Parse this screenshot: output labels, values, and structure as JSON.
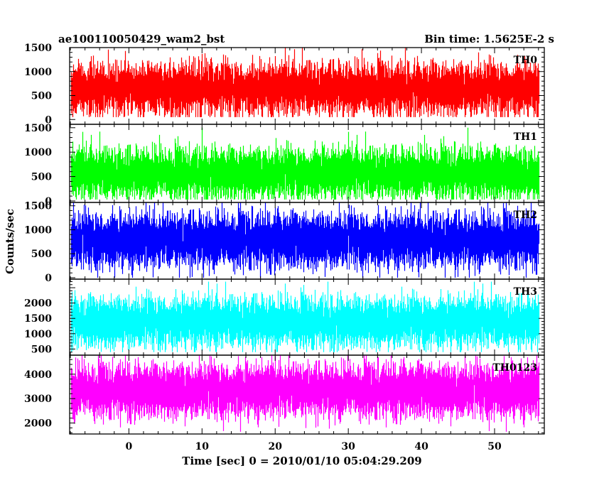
{
  "header": {
    "title": "ae100110050429_wam2_bst",
    "bin_time": "Bin time: 1.5625E-2 s"
  },
  "axes": {
    "ylabel": "Counts/sec",
    "xlabel": "Time [sec] 0 = 2010/01/10 05:04:29.209"
  },
  "chart_data": {
    "type": "line",
    "title": "ae100110050429_wam2_bst",
    "subtitle": "Bin time: 1.5625E-2 s",
    "xlabel": "Time [sec] 0 = 2010/01/10 05:04:29.209",
    "ylabel": "Counts/sec",
    "xlim": [
      -8.1,
      56.8
    ],
    "x_range_data": [
      -7.9,
      56.0
    ],
    "x_ticks": [
      0,
      10,
      20,
      30,
      40,
      50
    ],
    "x_tick_labels": [
      "0",
      "10",
      "20",
      "30",
      "40",
      "50"
    ],
    "bin_time_sec": 0.015625,
    "panels": [
      {
        "name": "TH0",
        "color": "#ff0000",
        "ylim": [
          -100,
          1500
        ],
        "y_ticks": [
          0,
          500,
          1000,
          1500
        ],
        "y_tick_labels": [
          "0",
          "500",
          "1000",
          "1500"
        ],
        "mean": 640,
        "noise_sd": 250,
        "min": 50,
        "max": 1500
      },
      {
        "name": "TH1",
        "color": "#00ff00",
        "ylim": [
          -30,
          1570
        ],
        "y_ticks": [
          0,
          500,
          1000,
          1500
        ],
        "y_tick_labels": [
          "0",
          "500",
          "1000",
          "1500"
        ],
        "mean": 560,
        "noise_sd": 240,
        "min": 30,
        "max": 1500
      },
      {
        "name": "TH2",
        "color": "#0000ff",
        "ylim": [
          -30,
          1570
        ],
        "y_ticks": [
          0,
          500,
          1000,
          1500
        ],
        "y_tick_labels": [
          "0",
          "500",
          "1000",
          "1500"
        ],
        "mean": 780,
        "noise_sd": 260,
        "min": 0,
        "max": 1570
      },
      {
        "name": "TH3",
        "color": "#00ffff",
        "ylim": [
          300,
          2780
        ],
        "y_ticks": [
          500,
          1000,
          1500,
          2000
        ],
        "y_tick_labels": [
          "500",
          "1000",
          "1500",
          "2000"
        ],
        "mean": 1380,
        "noise_sd": 380,
        "min": 400,
        "max": 2700
      },
      {
        "name": "TH0123",
        "color": "#ff00ff",
        "ylim": [
          1550,
          4780
        ],
        "y_ticks": [
          2000,
          3000,
          4000
        ],
        "y_tick_labels": [
          "2000",
          "3000",
          "4000"
        ],
        "mean": 3330,
        "noise_sd": 500,
        "min": 1600,
        "max": 4780
      }
    ]
  }
}
